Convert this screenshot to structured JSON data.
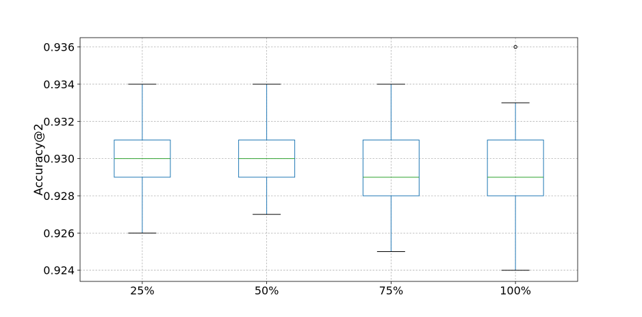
{
  "chart_data": {
    "type": "box",
    "title": "",
    "xlabel": "",
    "ylabel": "Accuracy@2",
    "ylim": [
      0.9234,
      0.9365
    ],
    "yticks": [
      "0.924",
      "0.926",
      "0.928",
      "0.930",
      "0.932",
      "0.934",
      "0.936"
    ],
    "grid": true,
    "categories": [
      "25%",
      "50%",
      "75%",
      "100%"
    ],
    "boxes": [
      {
        "whisker_low": 0.926,
        "q1": 0.929,
        "median": 0.93,
        "q3": 0.931,
        "whisker_high": 0.934,
        "outliers": []
      },
      {
        "whisker_low": 0.927,
        "q1": 0.929,
        "median": 0.93,
        "q3": 0.931,
        "whisker_high": 0.934,
        "outliers": []
      },
      {
        "whisker_low": 0.925,
        "q1": 0.928,
        "median": 0.929,
        "q3": 0.931,
        "whisker_high": 0.934,
        "outliers": []
      },
      {
        "whisker_low": 0.924,
        "q1": 0.928,
        "median": 0.929,
        "q3": 0.931,
        "whisker_high": 0.933,
        "outliers": [
          0.936
        ]
      }
    ],
    "colors": {
      "box": "#1f77b4",
      "median": "#2ca02c",
      "cap": "#000000",
      "grid": "#b0b0b0",
      "frame": "#000000"
    }
  }
}
